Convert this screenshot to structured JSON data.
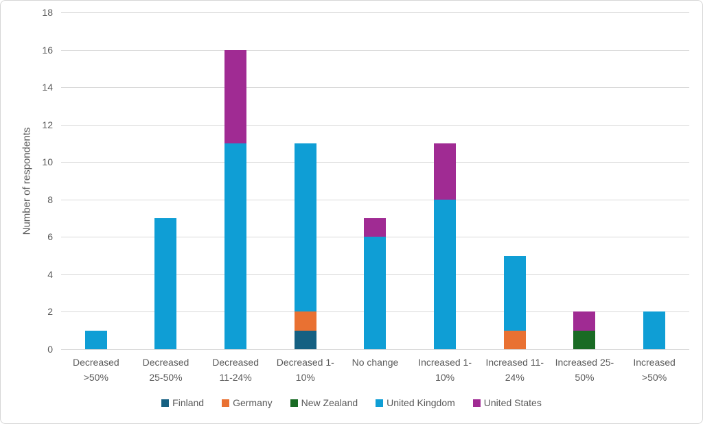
{
  "chart_data": {
    "type": "bar",
    "stacked": true,
    "title": "",
    "xlabel": "",
    "ylabel": "Number of respondents",
    "ylim": [
      0,
      18
    ],
    "ytick_step": 2,
    "grid": true,
    "legend_position": "bottom",
    "categories": [
      "Decreased >50%",
      "Decreased 25-50%",
      "Decreased 11-24%",
      "Decreased 1-10%",
      "No change",
      "Increased 1-10%",
      "Increased 11-24%",
      "Increased 25-50%",
      "Increased >50%"
    ],
    "category_label_lines": [
      [
        "Decreased",
        ">50%"
      ],
      [
        "Decreased",
        "25-50%"
      ],
      [
        "Decreased",
        "11-24%"
      ],
      [
        "Decreased 1-",
        "10%"
      ],
      [
        "No change"
      ],
      [
        "Increased 1-",
        "10%"
      ],
      [
        "Increased 11-",
        "24%"
      ],
      [
        "Increased 25-",
        "50%"
      ],
      [
        "Increased",
        ">50%"
      ]
    ],
    "series": [
      {
        "name": "Finland",
        "color": "#156082",
        "values": [
          0,
          0,
          0,
          1,
          0,
          0,
          0,
          0,
          0
        ]
      },
      {
        "name": "Germany",
        "color": "#E97132",
        "values": [
          0,
          0,
          0,
          1,
          0,
          0,
          1,
          0,
          0
        ]
      },
      {
        "name": "New Zealand",
        "color": "#196B24",
        "values": [
          0,
          0,
          0,
          0,
          0,
          0,
          0,
          1,
          0
        ]
      },
      {
        "name": "United Kingdom",
        "color": "#0F9ED5",
        "values": [
          1,
          7,
          11,
          9,
          6,
          8,
          4,
          0,
          2
        ]
      },
      {
        "name": "United States",
        "color": "#A02B93",
        "values": [
          0,
          0,
          5,
          0,
          1,
          3,
          0,
          1,
          0
        ]
      }
    ]
  },
  "colors": {
    "background": "#FFFFFF",
    "gridline": "#D9D9D9",
    "axis_text": "#595959",
    "frame_border": "#D6D6D6"
  }
}
